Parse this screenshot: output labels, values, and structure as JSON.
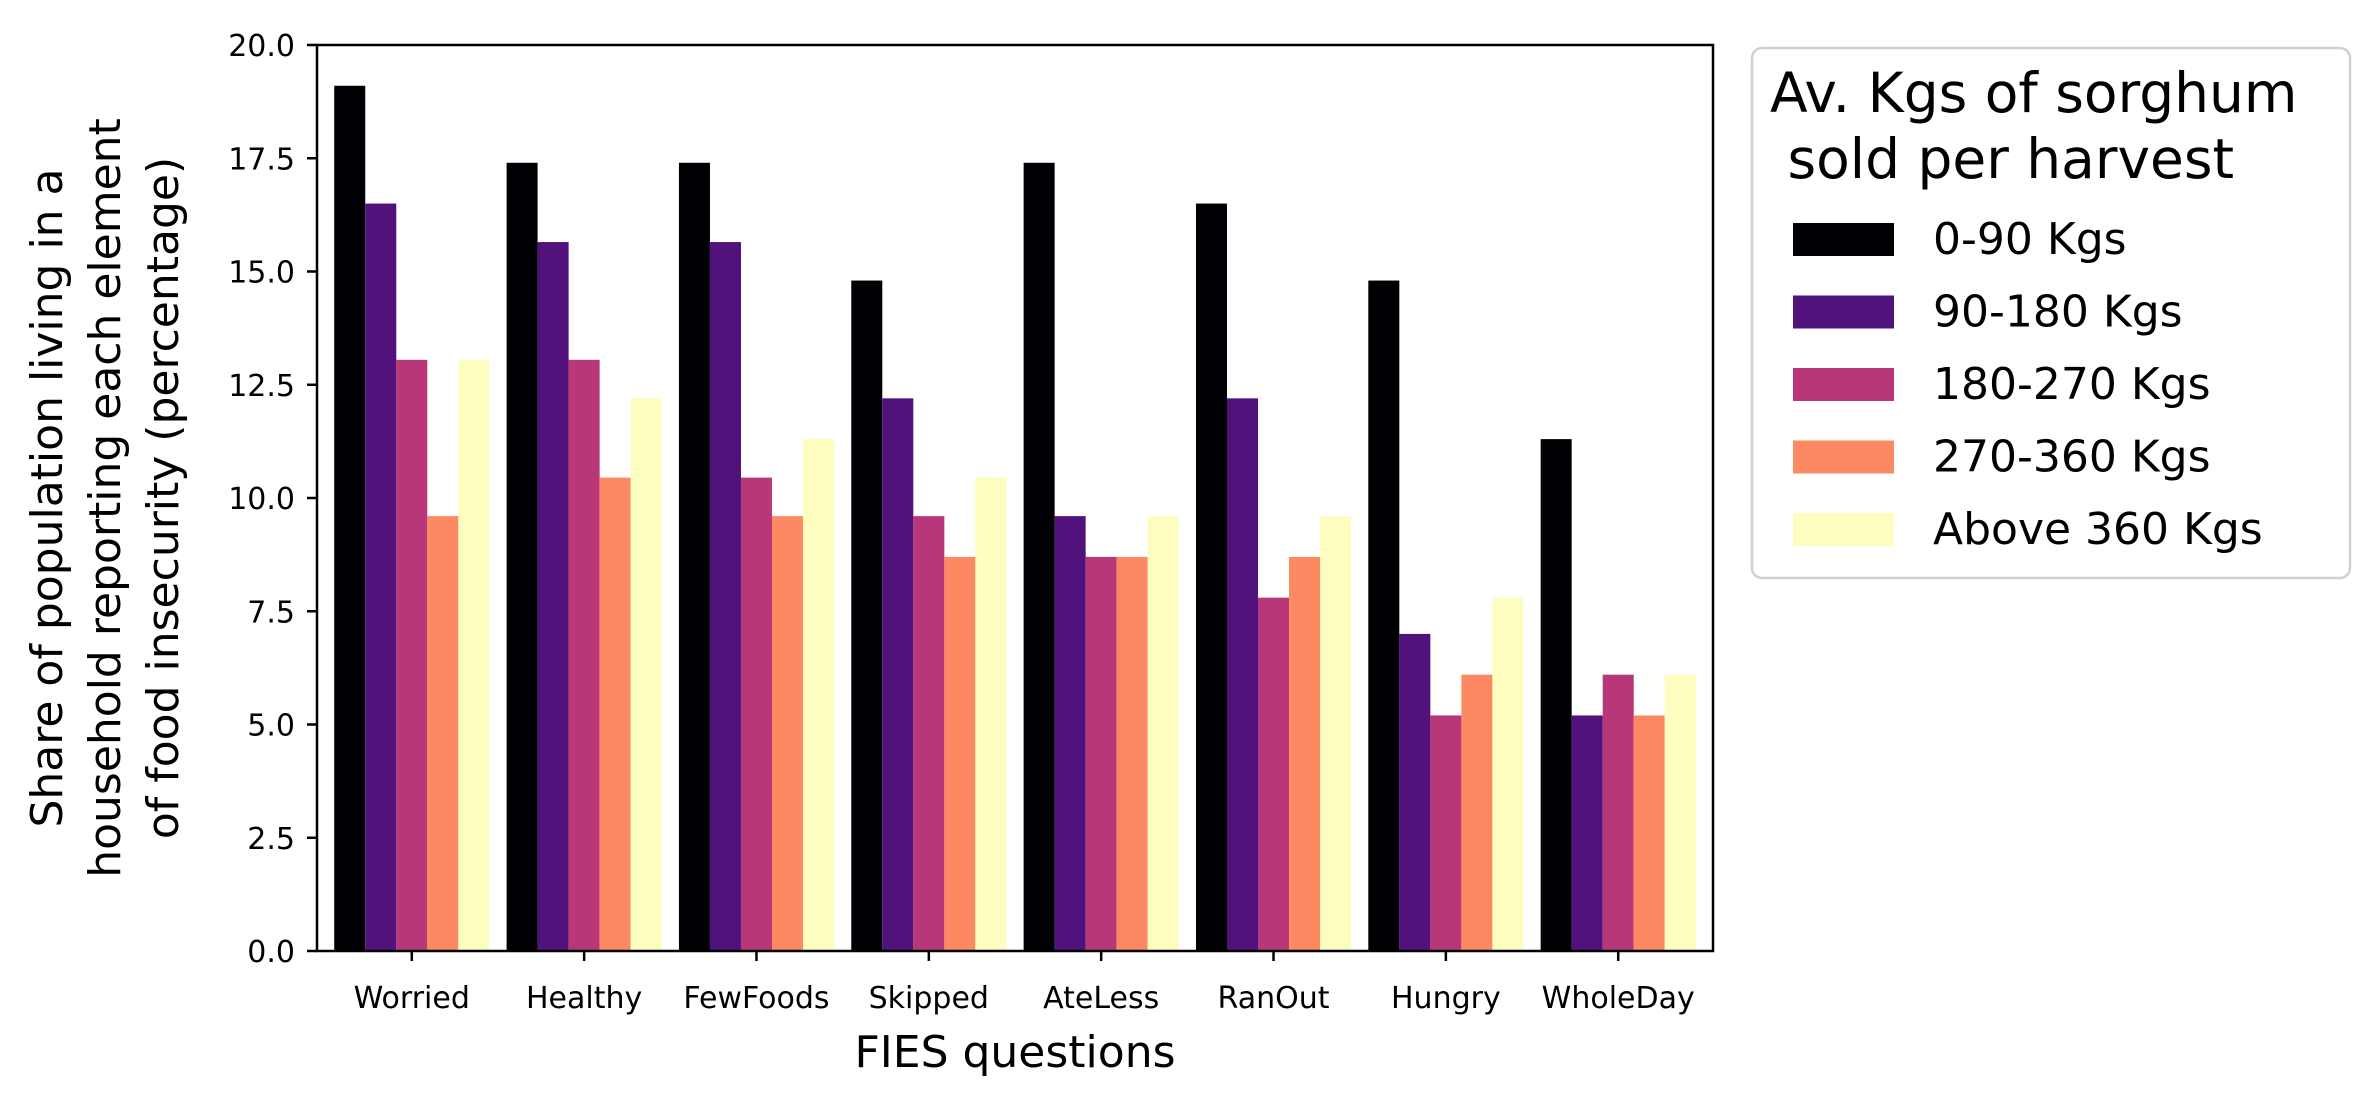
{
  "chart_data": {
    "type": "bar",
    "title": "",
    "xlabel": "FIES questions",
    "ylabel_lines": [
      "Share of population living in a",
      "household reporting each element",
      "of food insecurity (percentage)"
    ],
    "ylim": [
      0,
      20
    ],
    "yticks": [
      "0.0",
      "2.5",
      "5.0",
      "7.5",
      "10.0",
      "12.5",
      "15.0",
      "17.5",
      "20.0"
    ],
    "categories": [
      "Worried",
      "Healthy",
      "FewFoods",
      "Skipped",
      "AteLess",
      "RanOut",
      "Hungry",
      "WholeDay"
    ],
    "series": [
      {
        "name": "0-90 Kgs",
        "color": "#000004",
        "values": [
          19.1,
          17.4,
          17.4,
          14.8,
          17.4,
          16.5,
          14.8,
          11.3
        ]
      },
      {
        "name": "90-180 Kgs",
        "color": "#51127c",
        "values": [
          16.5,
          15.65,
          15.65,
          12.2,
          9.6,
          12.2,
          7.0,
          5.2
        ]
      },
      {
        "name": "180-270 Kgs",
        "color": "#b73779",
        "values": [
          13.05,
          13.05,
          10.45,
          9.6,
          8.7,
          7.8,
          5.2,
          6.1
        ]
      },
      {
        "name": "270-360 Kgs",
        "color": "#fc8961",
        "values": [
          9.6,
          10.45,
          9.6,
          8.7,
          8.7,
          8.7,
          6.1,
          5.2
        ]
      },
      {
        "name": "Above 360 Kgs",
        "color": "#fcfdbf",
        "values": [
          13.05,
          12.2,
          11.3,
          10.45,
          9.6,
          9.6,
          7.8,
          6.1
        ]
      }
    ],
    "legend": {
      "title_lines": [
        "Av. Kgs of sorghum",
        " sold per harvest"
      ],
      "placement": "outside-right-top"
    },
    "grid": false
  }
}
